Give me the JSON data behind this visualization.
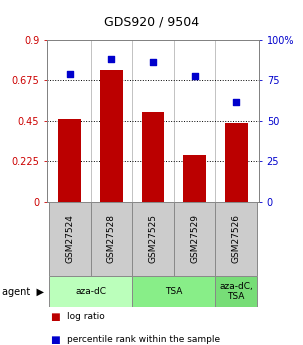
{
  "title": "GDS920 / 9504",
  "categories": [
    "GSM27524",
    "GSM27528",
    "GSM27525",
    "GSM27529",
    "GSM27526"
  ],
  "bar_values": [
    0.46,
    0.73,
    0.5,
    0.26,
    0.435
  ],
  "scatter_values_pct": [
    79,
    88,
    86.5,
    77.5,
    61.5
  ],
  "bar_color": "#bb0000",
  "scatter_color": "#0000cc",
  "ylim_left": [
    0,
    0.9
  ],
  "ylim_right": [
    0,
    100
  ],
  "yticks_left": [
    0,
    0.225,
    0.45,
    0.675,
    0.9
  ],
  "yticks_right": [
    0,
    25,
    50,
    75,
    100
  ],
  "ytick_labels_left": [
    "0",
    "0.225",
    "0.45",
    "0.675",
    "0.9"
  ],
  "ytick_labels_right": [
    "0",
    "25",
    "50",
    "75",
    "100%"
  ],
  "hlines": [
    0.225,
    0.45,
    0.675
  ],
  "agent_groups": [
    {
      "label": "aza-dC",
      "cols": [
        0,
        1
      ],
      "color": "#bbffbb"
    },
    {
      "label": "TSA",
      "cols": [
        2,
        3
      ],
      "color": "#88ee88"
    },
    {
      "label": "aza-dC,\nTSA",
      "cols": [
        4
      ],
      "color": "#77dd77"
    }
  ],
  "legend_items": [
    {
      "color": "#bb0000",
      "label": "log ratio"
    },
    {
      "color": "#0000cc",
      "label": "percentile rank within the sample"
    }
  ],
  "bar_width": 0.55,
  "label_bg": "#cccccc"
}
